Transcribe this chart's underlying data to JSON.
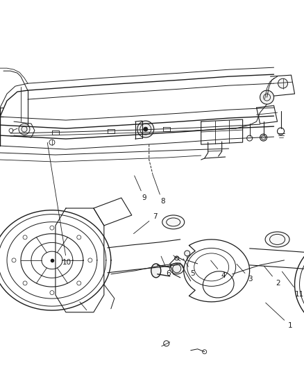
{
  "background_color": "#ffffff",
  "line_color": "#1a1a1a",
  "figsize": [
    4.38,
    5.33
  ],
  "dpi": 100,
  "top_labels": [
    [
      "1",
      [
        0.955,
        0.88
      ],
      [
        0.87,
        0.815
      ]
    ],
    [
      "11",
      [
        0.985,
        0.795
      ],
      [
        0.925,
        0.73
      ]
    ],
    [
      "2",
      [
        0.915,
        0.765
      ],
      [
        0.865,
        0.715
      ]
    ],
    [
      "3",
      [
        0.825,
        0.755
      ],
      [
        0.775,
        0.71
      ]
    ],
    [
      "4",
      [
        0.735,
        0.745
      ],
      [
        0.69,
        0.7
      ]
    ],
    [
      "5",
      [
        0.635,
        0.74
      ],
      [
        0.6,
        0.695
      ]
    ],
    [
      "6",
      [
        0.555,
        0.74
      ],
      [
        0.528,
        0.688
      ]
    ],
    [
      "7",
      [
        0.51,
        0.585
      ],
      [
        0.435,
        0.635
      ]
    ]
  ],
  "bottom_labels": [
    [
      "8",
      [
        0.535,
        0.545
      ],
      [
        0.5,
        0.465
      ]
    ],
    [
      "9",
      [
        0.475,
        0.535
      ],
      [
        0.44,
        0.47
      ]
    ],
    [
      "10",
      [
        0.22,
        0.71
      ],
      [
        0.155,
        0.38
      ]
    ]
  ]
}
